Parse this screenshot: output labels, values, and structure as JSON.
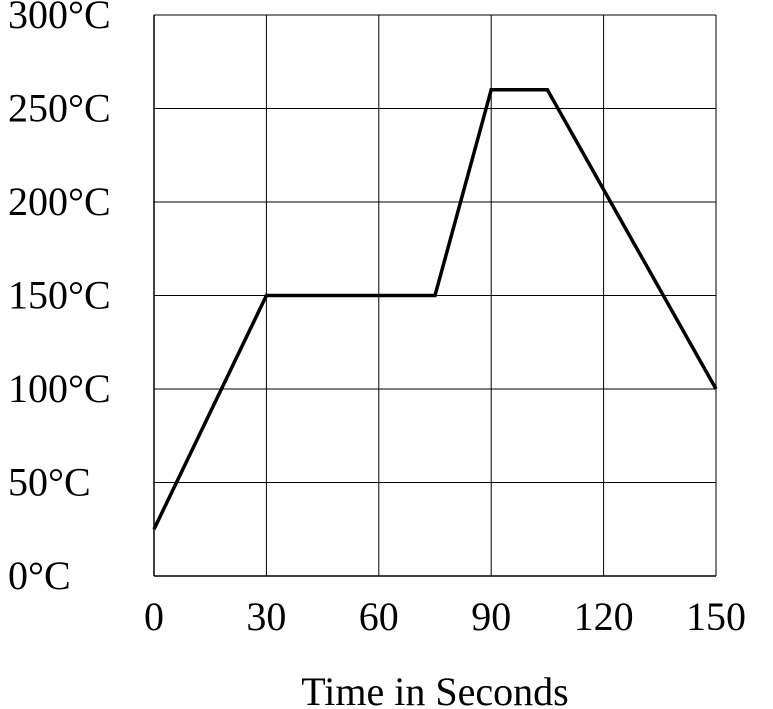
{
  "chart_data": {
    "type": "line",
    "title": "",
    "xlabel": "Time in Seconds",
    "ylabel": "",
    "xlim": [
      0,
      150
    ],
    "ylim": [
      0,
      300
    ],
    "x_ticks": [
      0,
      30,
      60,
      90,
      120,
      150
    ],
    "x_tick_labels": [
      "0",
      "30",
      "60",
      "90",
      "120",
      "150"
    ],
    "y_ticks": [
      0,
      50,
      100,
      150,
      200,
      250,
      300
    ],
    "y_tick_labels": [
      "0°C",
      "50°C",
      "100°C",
      "150°C",
      "200°C",
      "250°C",
      "300°C"
    ],
    "grid": true,
    "legend": "none",
    "series": [
      {
        "x": [
          0,
          30,
          75,
          90,
          105,
          150
        ],
        "y": [
          25,
          150,
          150,
          260,
          260,
          100
        ],
        "color": "#000000"
      }
    ]
  }
}
